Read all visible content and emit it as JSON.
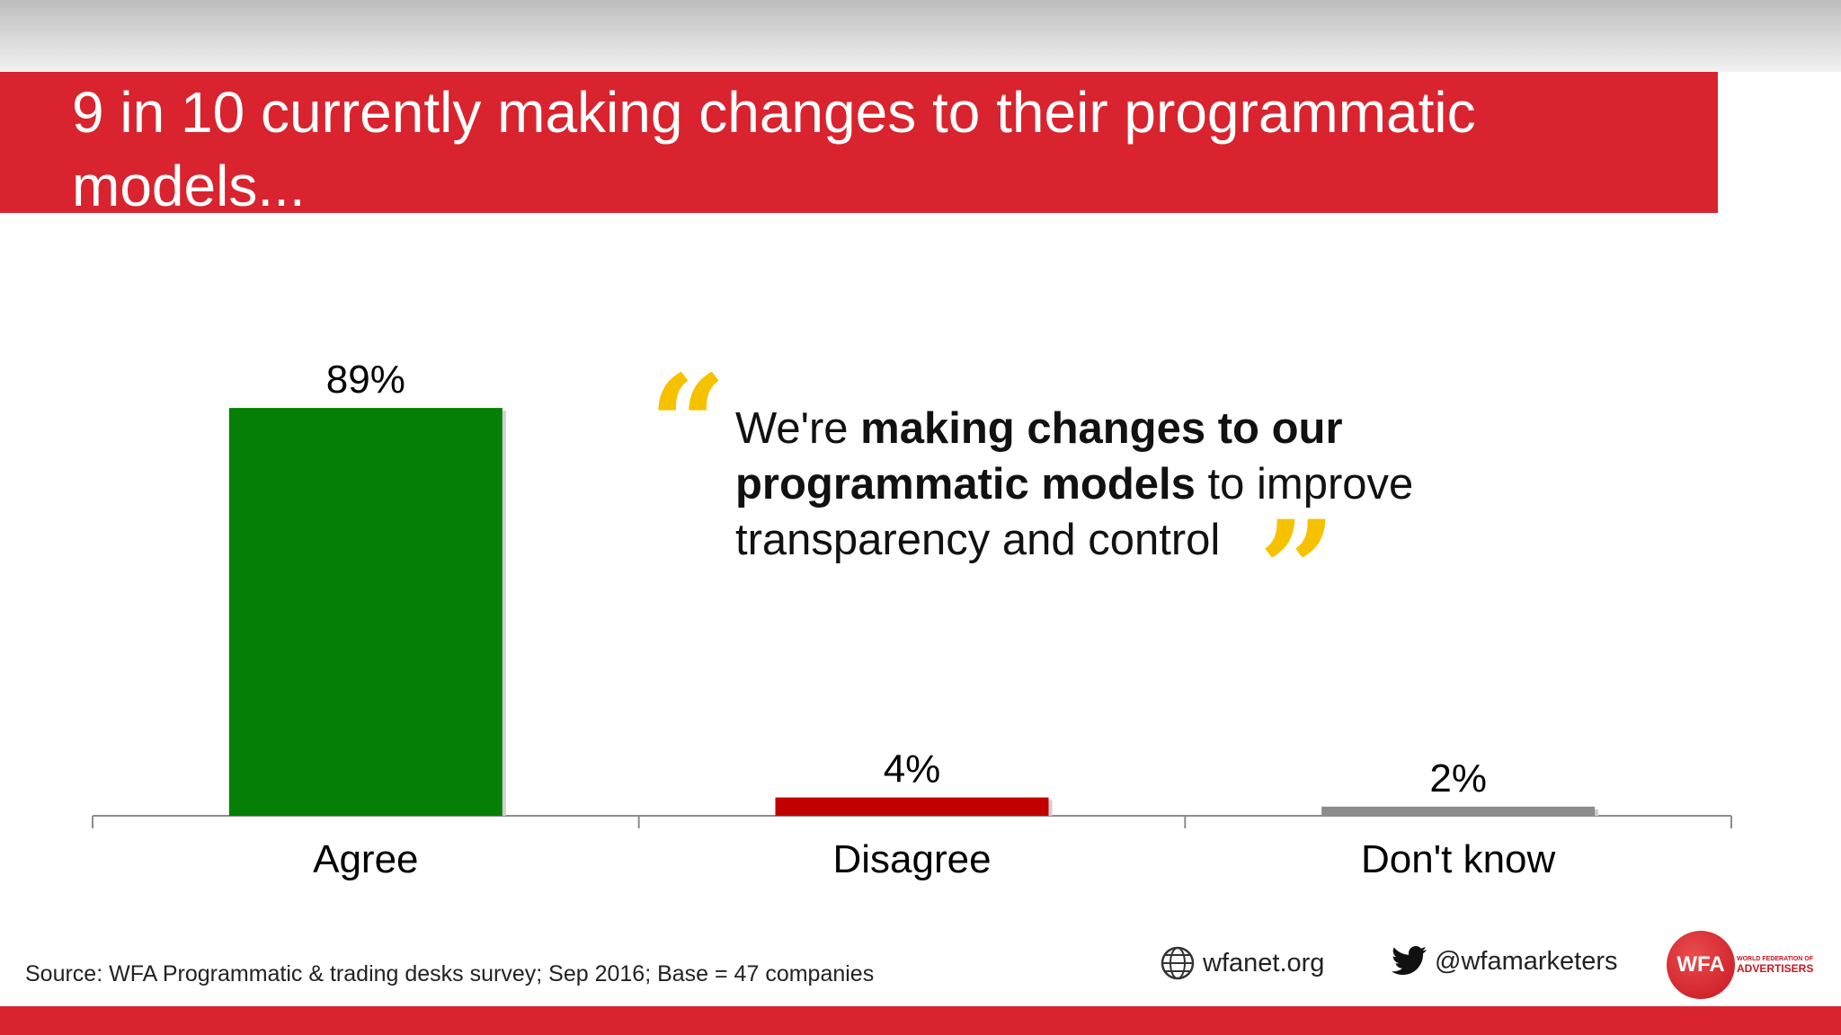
{
  "slide": {
    "title": "9 in 10 currently making changes to their programmatic models...",
    "title_bg": "#d9232e"
  },
  "chart_data": {
    "type": "bar",
    "categories": [
      "Agree",
      "Disagree",
      "Don't know"
    ],
    "values": [
      89,
      4,
      2
    ],
    "data_labels": [
      "89%",
      "4%",
      "2%"
    ],
    "colors": [
      "#067f06",
      "#c00000",
      "#8c8c8c"
    ],
    "ylim": [
      0,
      100
    ],
    "grid": false,
    "title": "",
    "xlabel": "",
    "ylabel": ""
  },
  "quote": {
    "open_mark": "“",
    "close_mark": "”",
    "part1": "We're ",
    "bold": "making changes to our programmatic models",
    "part2": " to improve transparency and control",
    "mark_color": "#f6c200"
  },
  "footer": {
    "source": "Source: WFA Programmatic & trading desks survey; Sep 2016; Base = 47 companies",
    "website": "wfanet.org",
    "twitter": "@wfamarketers",
    "website_icon": "globe-icon",
    "twitter_icon": "twitter-icon",
    "logo_text": "WFA",
    "logo_subtitle_small": "WORLD FEDERATION OF",
    "logo_subtitle": "ADVERTISERS"
  }
}
